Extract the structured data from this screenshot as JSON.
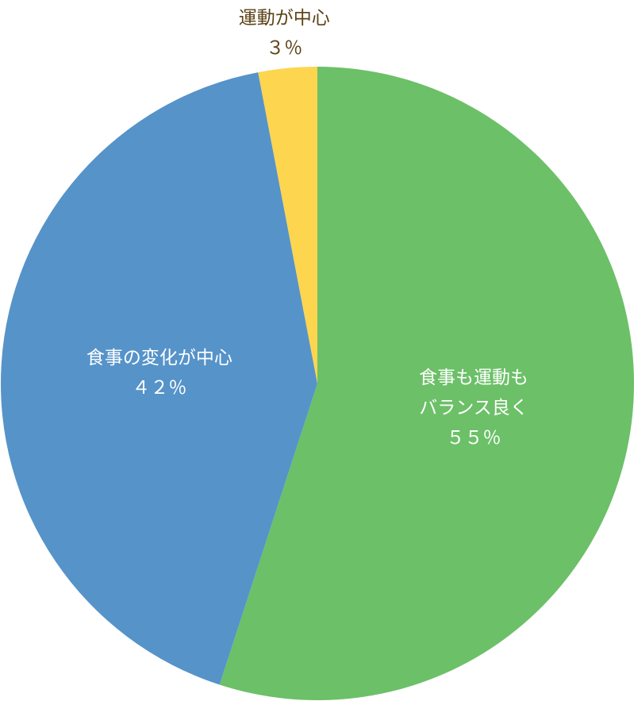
{
  "chart_data": {
    "type": "pie",
    "categories": [
      "食事も運動も\nバランス良く",
      "食事の変化が中心",
      "運動が中心"
    ],
    "values": [
      55,
      42,
      3
    ],
    "value_labels": [
      "５５％",
      "４２％",
      "３％"
    ],
    "colors": [
      "#6cc068",
      "#5693c9",
      "#fdd54f"
    ]
  }
}
